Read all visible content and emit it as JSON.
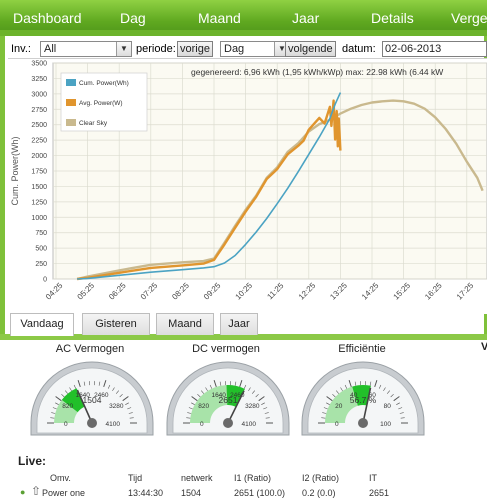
{
  "nav": {
    "items": [
      "Dashboard",
      "Dag",
      "Maand",
      "Jaar",
      "Details",
      "Verge"
    ]
  },
  "controls": {
    "inv_label": "Inv.:",
    "inv_value": "All",
    "periode_label": "periode:",
    "prev_button": "vorige",
    "period_value": "Dag",
    "next_button": "volgende",
    "datum_label": "datum:",
    "datum_value": "02-06-2013"
  },
  "chart_data": {
    "type": "line",
    "ylabel": "Cum. Power(Wh)",
    "xlabel": "",
    "ylim": [
      0,
      3500
    ],
    "yticks": [
      0,
      250,
      500,
      750,
      1000,
      1250,
      1500,
      1750,
      2000,
      2250,
      2500,
      2750,
      3000,
      3250,
      3500
    ],
    "x_ticks": [
      "04:25",
      "05:25",
      "06:25",
      "07:25",
      "08:25",
      "09:25",
      "10:25",
      "11:25",
      "12:25",
      "13:25",
      "14:25",
      "15:25",
      "16:25",
      "17:25"
    ],
    "grid": true,
    "legend_position": "top-left",
    "annotation": "gegenereerd: 6,96 kWh (1,95 kWh/kWp)   max: 22.98 kWh (6.44 kW",
    "series": [
      {
        "name": "Cum. Power(Wh)",
        "color": "#4ba3c3",
        "x": [
          "05:05",
          "05:25",
          "06:25",
          "07:25",
          "08:25",
          "09:05",
          "09:25",
          "09:45",
          "10:05",
          "10:25",
          "10:45",
          "11:05",
          "11:25",
          "11:45",
          "12:05",
          "12:25",
          "12:45",
          "13:05",
          "13:15",
          "13:25"
        ],
        "values": [
          0,
          10,
          60,
          110,
          150,
          180,
          200,
          260,
          380,
          560,
          760,
          980,
          1220,
          1470,
          1740,
          2020,
          2300,
          2600,
          2830,
          3020
        ]
      },
      {
        "name": "Avg. Power(W)",
        "color": "#e0952e",
        "x": [
          "05:05",
          "05:25",
          "06:25",
          "07:25",
          "08:25",
          "09:05",
          "09:25",
          "09:45",
          "10:05",
          "10:25",
          "10:45",
          "11:05",
          "11:25",
          "11:45",
          "12:05",
          "12:15",
          "12:25",
          "12:45",
          "12:55",
          "13:05",
          "13:08",
          "13:12",
          "13:15",
          "13:18",
          "13:20",
          "13:22",
          "13:25"
        ],
        "values": [
          0,
          20,
          100,
          180,
          220,
          250,
          310,
          560,
          830,
          1090,
          1330,
          1620,
          1780,
          2020,
          2160,
          2240,
          2420,
          2610,
          2520,
          2790,
          2480,
          2890,
          2260,
          2720,
          2150,
          2600,
          2080
        ]
      },
      {
        "name": "Clear Sky",
        "color": "#c9b98e",
        "x": [
          "05:05",
          "05:25",
          "06:25",
          "07:25",
          "08:25",
          "09:05",
          "09:25",
          "09:45",
          "10:05",
          "10:25",
          "10:45",
          "11:05",
          "11:25",
          "11:45",
          "12:05",
          "12:25",
          "12:45",
          "13:05",
          "13:25",
          "13:45",
          "14:05",
          "14:25",
          "14:45",
          "15:05",
          "15:25",
          "15:45",
          "16:05",
          "16:25",
          "16:45",
          "17:05",
          "17:25",
          "17:45",
          "17:55"
        ],
        "values": [
          0,
          40,
          140,
          230,
          270,
          290,
          330,
          590,
          860,
          1120,
          1350,
          1640,
          1810,
          2060,
          2200,
          2390,
          2510,
          2580,
          2680,
          2760,
          2820,
          2860,
          2880,
          2890,
          2880,
          2840,
          2760,
          2620,
          2430,
          2190,
          1900,
          1640,
          1430
        ]
      }
    ]
  },
  "tabs": [
    "Vandaag",
    "Gisteren",
    "Maand",
    "Jaar"
  ],
  "active_tab": 0,
  "gauges": [
    {
      "title": "AC Vermogen",
      "value": "1504",
      "value_num": 1504,
      "min": 0,
      "max": 4100,
      "ticks": [
        "0",
        "820",
        "1640",
        "2460",
        "3280",
        "4100"
      ]
    },
    {
      "title": "DC vermogen",
      "value": "2651",
      "value_num": 2651,
      "min": 0,
      "max": 4100,
      "ticks": [
        "0",
        "820",
        "1640",
        "2460",
        "3280",
        "4100"
      ]
    },
    {
      "title": "Efficiëntie",
      "value": "56.7 %",
      "value_num": 56.7,
      "min": 0,
      "max": 100,
      "ticks": [
        "0",
        "20",
        "40",
        "60",
        "80",
        "100"
      ]
    }
  ],
  "right_edge_text": "V",
  "live": {
    "title": "Live:",
    "headers": [
      "Omv.",
      "Tijd",
      "netwerk",
      "I1 (Ratio)",
      "I2 (Ratio)",
      "IT"
    ],
    "rows": [
      [
        "Power one",
        "13:44:30",
        "1504",
        "2651 (100.0)",
        "0.2 (0.0)",
        "2651"
      ]
    ]
  }
}
